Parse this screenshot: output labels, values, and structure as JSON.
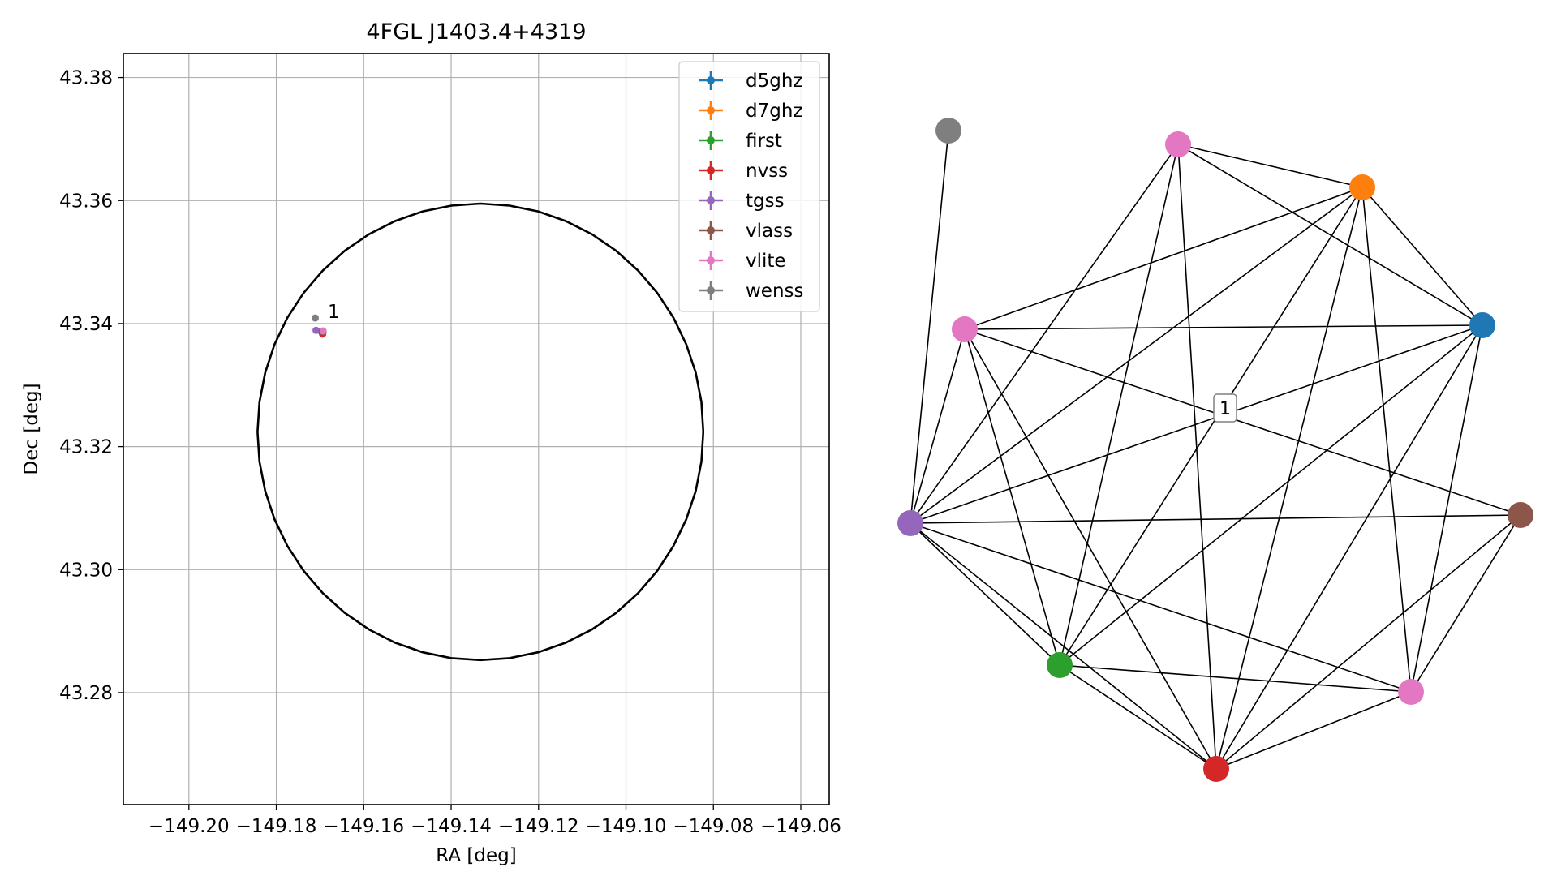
{
  "chart_data": [
    {
      "type": "scatter",
      "title": "4FGL J1403.4+4319",
      "xlabel": "RA [deg]",
      "ylabel": "Dec [deg]",
      "xlim": [
        -149.215,
        -149.0535
      ],
      "ylim": [
        43.2618,
        43.3839
      ],
      "xticks": [
        -149.2,
        -149.18,
        -149.16,
        -149.14,
        -149.12,
        -149.1,
        -149.08,
        -149.06
      ],
      "xtick_labels": [
        "−149.20",
        "−149.18",
        "−149.16",
        "−149.14",
        "−149.12",
        "−149.10",
        "−149.08",
        "−149.06"
      ],
      "yticks": [
        43.28,
        43.3,
        43.32,
        43.34,
        43.36,
        43.38
      ],
      "ytick_labels": [
        "43.28",
        "43.30",
        "43.32",
        "43.34",
        "43.36",
        "43.38"
      ],
      "grid": true,
      "legend_position": "top-right",
      "circle": {
        "center": [
          -149.1333,
          43.3224
        ],
        "radius_deg": 0.0371
      },
      "series": [
        {
          "name": "d5ghz",
          "color": "#1f77b4",
          "x": [
            -149.1697
          ],
          "y": [
            43.3387
          ]
        },
        {
          "name": "d7ghz",
          "color": "#ff7f0e",
          "x": [
            -149.1695
          ],
          "y": [
            43.3387
          ]
        },
        {
          "name": "first",
          "color": "#2ca02c",
          "x": [
            -149.1693
          ],
          "y": [
            43.3386
          ]
        },
        {
          "name": "nvss",
          "color": "#d62728",
          "x": [
            -149.1694
          ],
          "y": [
            43.3383
          ]
        },
        {
          "name": "tgss",
          "color": "#9467bd",
          "x": [
            -149.1709
          ],
          "y": [
            43.3389
          ]
        },
        {
          "name": "vlass",
          "color": "#8c564b",
          "x": [
            -149.1695
          ],
          "y": [
            43.3387
          ]
        },
        {
          "name": "vlite",
          "color": "#e377c2",
          "x": [
            -149.1693
          ],
          "y": [
            43.3388
          ]
        },
        {
          "name": "wenss",
          "color": "#7f7f7f",
          "x": [
            -149.1711
          ],
          "y": [
            43.3409
          ]
        }
      ],
      "annotations": [
        {
          "text": "1",
          "x": -149.1686,
          "y": 43.3412
        }
      ]
    },
    {
      "type": "network",
      "nodes": [
        {
          "id": "gray",
          "color": "#7f7f7f"
        },
        {
          "id": "pink-top",
          "color": "#e377c2"
        },
        {
          "id": "orange",
          "color": "#ff7f0e"
        },
        {
          "id": "blue",
          "color": "#1f77b4"
        },
        {
          "id": "pink-left",
          "color": "#e377c2"
        },
        {
          "id": "purple",
          "color": "#9467bd"
        },
        {
          "id": "brown",
          "color": "#8c564b"
        },
        {
          "id": "green",
          "color": "#2ca02c"
        },
        {
          "id": "pink-bottom",
          "color": "#e377c2"
        },
        {
          "id": "red",
          "color": "#d62728"
        }
      ],
      "edges": [
        [
          "gray",
          "purple"
        ],
        [
          "pink-top",
          "orange"
        ],
        [
          "pink-top",
          "blue"
        ],
        [
          "pink-top",
          "purple"
        ],
        [
          "pink-top",
          "green"
        ],
        [
          "pink-top",
          "red"
        ],
        [
          "orange",
          "blue"
        ],
        [
          "orange",
          "pink-left"
        ],
        [
          "orange",
          "purple"
        ],
        [
          "orange",
          "green"
        ],
        [
          "orange",
          "red"
        ],
        [
          "orange",
          "pink-bottom"
        ],
        [
          "blue",
          "pink-left"
        ],
        [
          "blue",
          "purple"
        ],
        [
          "blue",
          "green"
        ],
        [
          "blue",
          "red"
        ],
        [
          "blue",
          "pink-bottom"
        ],
        [
          "pink-left",
          "purple"
        ],
        [
          "pink-left",
          "brown"
        ],
        [
          "pink-left",
          "green"
        ],
        [
          "pink-left",
          "red"
        ],
        [
          "purple",
          "brown"
        ],
        [
          "purple",
          "green"
        ],
        [
          "purple",
          "red"
        ],
        [
          "purple",
          "pink-bottom"
        ],
        [
          "brown",
          "red"
        ],
        [
          "brown",
          "pink-bottom"
        ],
        [
          "green",
          "red"
        ],
        [
          "green",
          "pink-bottom"
        ],
        [
          "red",
          "pink-bottom"
        ]
      ],
      "label": "1"
    }
  ]
}
